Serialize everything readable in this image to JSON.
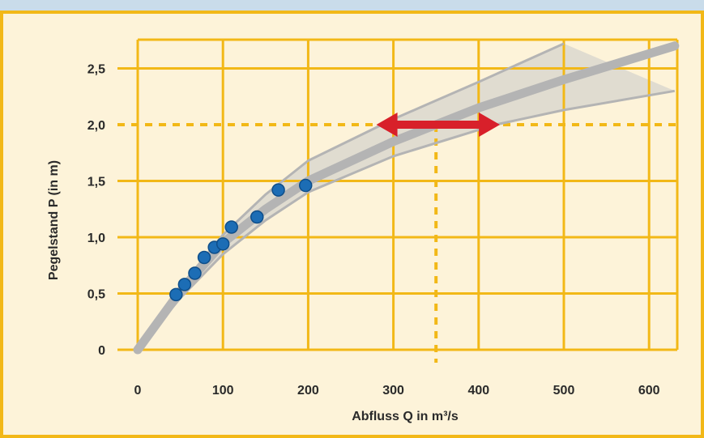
{
  "chart_data": {
    "type": "scatter",
    "xlabel": "Abfluss Q in m³/s",
    "ylabel": "Pegelstand P (in m)",
    "xlim": [
      0,
      630
    ],
    "ylim": [
      0,
      2.7
    ],
    "x_ticks": [
      0,
      100,
      200,
      300,
      400,
      500,
      600
    ],
    "x_tick_labels": [
      "0",
      "100",
      "200",
      "300",
      "400",
      "500",
      "600"
    ],
    "y_ticks": [
      0,
      0.5,
      1.0,
      1.5,
      2.0,
      2.5
    ],
    "y_tick_labels": [
      "0",
      "0,5",
      "1,0",
      "1,5",
      "2,0",
      "2,5"
    ],
    "grid": true,
    "series": [
      {
        "kind": "scatter",
        "color": "#1c6db5",
        "points": [
          {
            "x": 45,
            "y": 0.49
          },
          {
            "x": 55,
            "y": 0.58
          },
          {
            "x": 67,
            "y": 0.68
          },
          {
            "x": 78,
            "y": 0.82
          },
          {
            "x": 90,
            "y": 0.91
          },
          {
            "x": 100,
            "y": 0.94
          },
          {
            "x": 110,
            "y": 1.09
          },
          {
            "x": 140,
            "y": 1.18
          },
          {
            "x": 165,
            "y": 1.42
          },
          {
            "x": 197,
            "y": 1.46
          }
        ]
      },
      {
        "kind": "line",
        "role": "fitted-curve",
        "color": "#b4b4b4",
        "points": [
          {
            "x": 0,
            "y": 0
          },
          {
            "x": 50,
            "y": 0.52
          },
          {
            "x": 100,
            "y": 0.95
          },
          {
            "x": 150,
            "y": 1.25
          },
          {
            "x": 200,
            "y": 1.5
          },
          {
            "x": 300,
            "y": 1.85
          },
          {
            "x": 350,
            "y": 2.0
          },
          {
            "x": 400,
            "y": 2.15
          },
          {
            "x": 500,
            "y": 2.4
          },
          {
            "x": 630,
            "y": 2.7
          }
        ]
      },
      {
        "kind": "line",
        "role": "upper-bound",
        "color": "#b4b4b4",
        "points": [
          {
            "x": 0,
            "y": 0
          },
          {
            "x": 50,
            "y": 0.56
          },
          {
            "x": 100,
            "y": 1.02
          },
          {
            "x": 150,
            "y": 1.38
          },
          {
            "x": 200,
            "y": 1.68
          },
          {
            "x": 300,
            "y": 2.05
          },
          {
            "x": 400,
            "y": 2.38
          },
          {
            "x": 500,
            "y": 2.72
          }
        ]
      },
      {
        "kind": "line",
        "role": "lower-bound",
        "color": "#b4b4b4",
        "points": [
          {
            "x": 0,
            "y": 0
          },
          {
            "x": 50,
            "y": 0.46
          },
          {
            "x": 100,
            "y": 0.85
          },
          {
            "x": 150,
            "y": 1.15
          },
          {
            "x": 200,
            "y": 1.4
          },
          {
            "x": 300,
            "y": 1.72
          },
          {
            "x": 420,
            "y": 2.0
          },
          {
            "x": 500,
            "y": 2.13
          },
          {
            "x": 630,
            "y": 2.3
          }
        ]
      }
    ],
    "reference_lines": [
      {
        "orientation": "horizontal",
        "y": 2.0,
        "style": "dashed",
        "color": "#f2b817"
      },
      {
        "orientation": "vertical",
        "x": 350,
        "y_to": 2.0,
        "style": "dashed",
        "color": "#f2b817"
      }
    ],
    "annotations": [
      {
        "type": "double-arrow",
        "y": 2.0,
        "x_from": 280,
        "x_to": 425,
        "color": "#d8202a"
      }
    ],
    "colors": {
      "background": "#fdf3d9",
      "grid": "#f2b817",
      "band": "#c8c8c8",
      "outer": "#c9dcea"
    }
  }
}
